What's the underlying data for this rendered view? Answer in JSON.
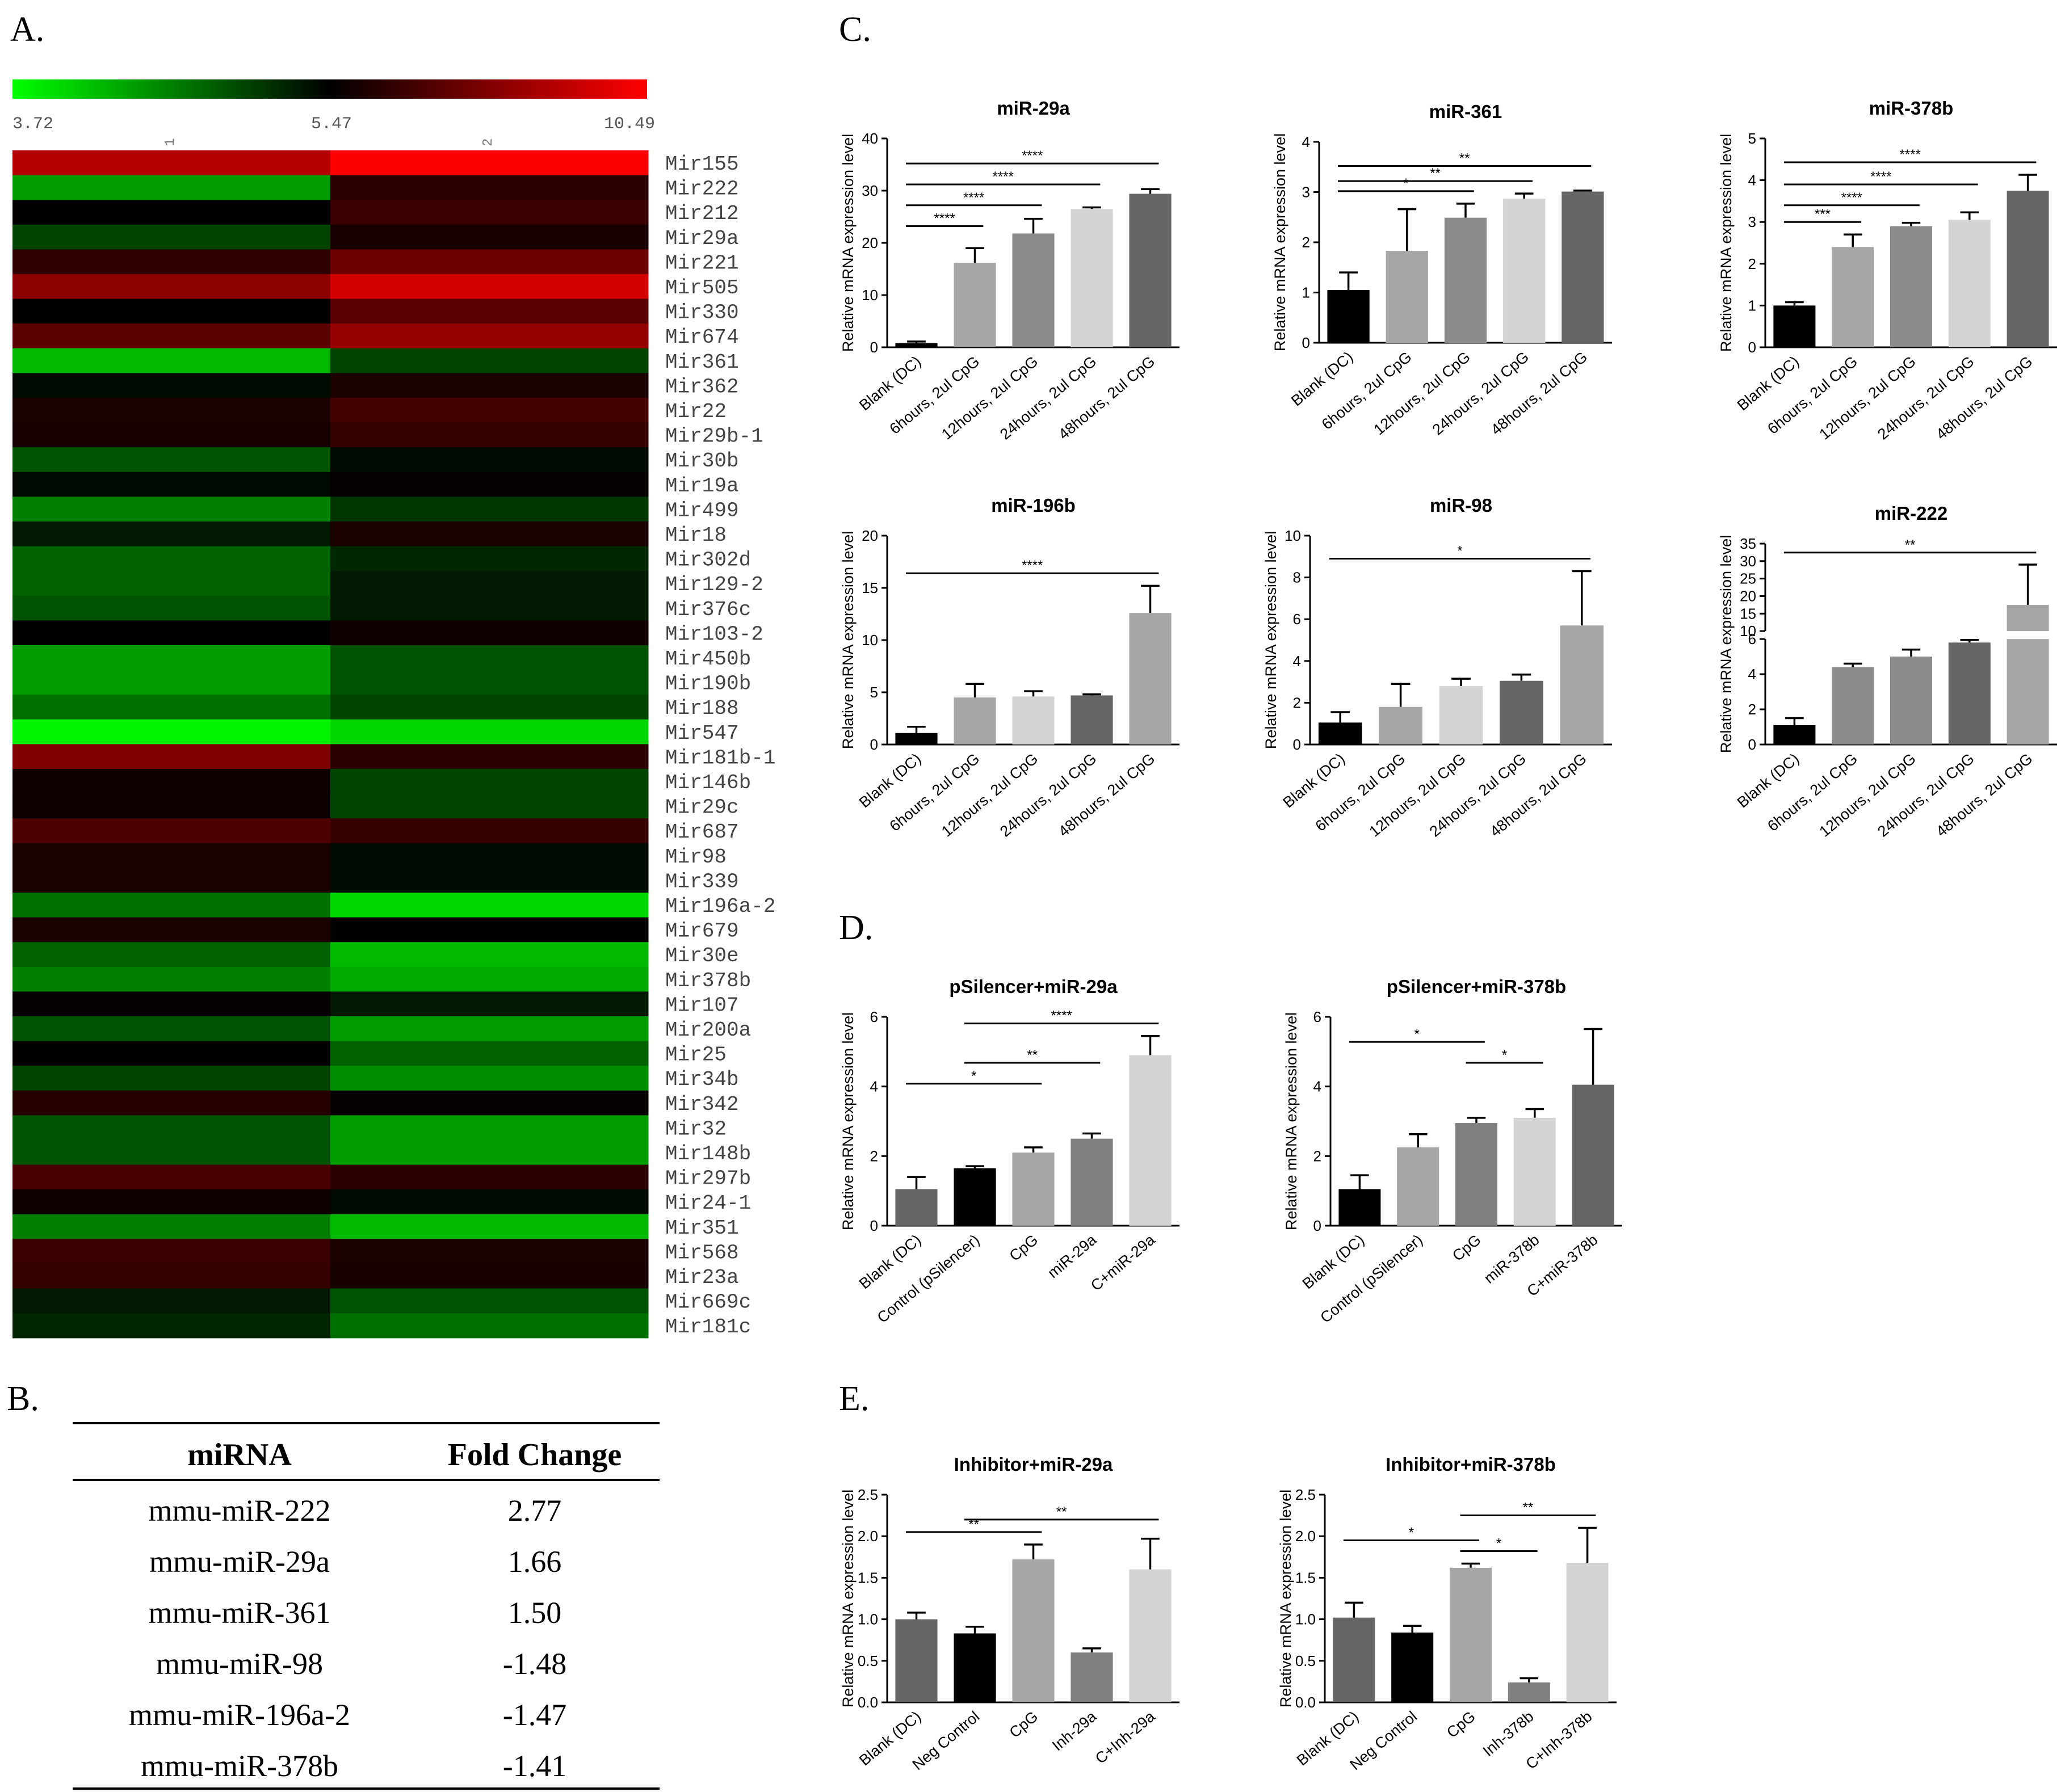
{
  "panel_labels": {
    "A": "A.",
    "B": "B.",
    "C": "C.",
    "D": "D.",
    "E": "E."
  },
  "heatmap": {
    "colorbar": {
      "min": "3.72",
      "mid": "5.47",
      "max": "10.49",
      "colors": [
        "#00ff00",
        "#000000",
        "#ff0000"
      ]
    },
    "column_labels": [
      "1",
      "2"
    ],
    "rows": [
      {
        "name": "Mir155",
        "values": [
          9.0,
          10.4
        ]
      },
      {
        "name": "Mir222",
        "values": [
          4.4,
          6.3
        ]
      },
      {
        "name": "Mir212",
        "values": [
          5.5,
          6.6
        ]
      },
      {
        "name": "Mir29a",
        "values": [
          5.0,
          5.9
        ]
      },
      {
        "name": "Mir221",
        "values": [
          6.4,
          7.6
        ]
      },
      {
        "name": "Mir505",
        "values": [
          8.2,
          9.6
        ]
      },
      {
        "name": "Mir330",
        "values": [
          5.5,
          7.2
        ]
      },
      {
        "name": "Mir674",
        "values": [
          7.3,
          8.4
        ]
      },
      {
        "name": "Mir361",
        "values": [
          4.2,
          5.0
        ]
      },
      {
        "name": "Mir362",
        "values": [
          5.4,
          6.0
        ]
      },
      {
        "name": "Mir22",
        "values": [
          6.0,
          6.8
        ]
      },
      {
        "name": "Mir29b-1",
        "values": [
          5.9,
          6.5
        ]
      },
      {
        "name": "Mir30b",
        "values": [
          4.9,
          5.4
        ]
      },
      {
        "name": "Mir19a",
        "values": [
          5.4,
          5.6
        ]
      },
      {
        "name": "Mir499",
        "values": [
          4.6,
          5.1
        ]
      },
      {
        "name": "Mir18",
        "values": [
          5.3,
          6.0
        ]
      },
      {
        "name": "Mir302d",
        "values": [
          4.8,
          5.2
        ]
      },
      {
        "name": "Mir129-2",
        "values": [
          4.8,
          5.3
        ]
      },
      {
        "name": "Mir376c",
        "values": [
          4.9,
          5.3
        ]
      },
      {
        "name": "Mir103-2",
        "values": [
          5.5,
          5.8
        ]
      },
      {
        "name": "Mir450b",
        "values": [
          4.4,
          4.9
        ]
      },
      {
        "name": "Mir190b",
        "values": [
          4.4,
          4.9
        ]
      },
      {
        "name": "Mir188",
        "values": [
          4.7,
          5.0
        ]
      },
      {
        "name": "Mir547",
        "values": [
          3.8,
          4.0
        ]
      },
      {
        "name": "Mir181b-1",
        "values": [
          8.0,
          6.3
        ]
      },
      {
        "name": "Mir146b",
        "values": [
          5.8,
          5.0
        ]
      },
      {
        "name": "Mir29c",
        "values": [
          5.7,
          5.0
        ]
      },
      {
        "name": "Mir687",
        "values": [
          7.0,
          6.5
        ]
      },
      {
        "name": "Mir98",
        "values": [
          6.0,
          5.4
        ]
      },
      {
        "name": "Mir339",
        "values": [
          6.0,
          5.4
        ]
      },
      {
        "name": "Mir196a-2",
        "values": [
          4.7,
          4.0
        ]
      },
      {
        "name": "Mir679",
        "values": [
          6.0,
          5.5
        ]
      },
      {
        "name": "Mir30e",
        "values": [
          4.8,
          4.2
        ]
      },
      {
        "name": "Mir378b",
        "values": [
          4.6,
          4.3
        ]
      },
      {
        "name": "Mir107",
        "values": [
          5.6,
          5.3
        ]
      },
      {
        "name": "Mir200a",
        "values": [
          4.9,
          4.4
        ]
      },
      {
        "name": "Mir25",
        "values": [
          5.5,
          4.8
        ]
      },
      {
        "name": "Mir34b",
        "values": [
          5.0,
          4.5
        ]
      },
      {
        "name": "Mir342",
        "values": [
          6.2,
          5.6
        ]
      },
      {
        "name": "Mir32",
        "values": [
          4.9,
          4.4
        ]
      },
      {
        "name": "Mir148b",
        "values": [
          4.9,
          4.4
        ]
      },
      {
        "name": "Mir297b",
        "values": [
          6.9,
          6.3
        ]
      },
      {
        "name": "Mir24-1",
        "values": [
          5.7,
          5.4
        ]
      },
      {
        "name": "Mir351",
        "values": [
          4.6,
          4.2
        ]
      },
      {
        "name": "Mir568",
        "values": [
          6.6,
          6.0
        ]
      },
      {
        "name": "Mir23a",
        "values": [
          6.5,
          5.9
        ]
      },
      {
        "name": "Mir669c",
        "values": [
          5.3,
          4.9
        ]
      },
      {
        "name": "Mir181c",
        "values": [
          5.2,
          4.7
        ]
      }
    ]
  },
  "table": {
    "headers": [
      "miRNA",
      "Fold Change"
    ],
    "rows": [
      [
        "mmu-miR-222",
        "2.77"
      ],
      [
        "mmu-miR-29a",
        "1.66"
      ],
      [
        "mmu-miR-361",
        "1.50"
      ],
      [
        "mmu-miR-98",
        "-1.48"
      ],
      [
        "mmu-miR-196a-2",
        "-1.47"
      ],
      [
        "mmu-miR-378b",
        "-1.41"
      ]
    ]
  },
  "chart_data": [
    {
      "type": "bar",
      "panel": "C",
      "title": "miR-29a",
      "ylabel": "Relative mRNA expression level",
      "categories": [
        "Blank (DC)",
        "6hours, 2ul CpG",
        "12hours, 2ul CpG",
        "24hours, 2ul CpG",
        "48hours, 2ul CpG"
      ],
      "values": [
        0.8,
        16.2,
        21.8,
        26.5,
        29.4
      ],
      "errors": [
        0.3,
        2.8,
        2.8,
        0.3,
        0.9
      ],
      "colors": [
        "#000000",
        "#a6a6a6",
        "#8c8c8c",
        "#d4d4d4",
        "#666666"
      ],
      "ylim": [
        0,
        40
      ],
      "yticks": [
        "0",
        "10",
        "20",
        "30",
        "40"
      ],
      "significance": [
        {
          "from": 0,
          "to": 4,
          "label": "****"
        },
        {
          "from": 0,
          "to": 3,
          "label": "****"
        },
        {
          "from": 0,
          "to": 2,
          "label": "****"
        },
        {
          "from": 0,
          "to": 1,
          "label": "****"
        }
      ]
    },
    {
      "type": "bar",
      "panel": "C",
      "title": "miR-361",
      "ylabel": "Relative mRNA expression level",
      "categories": [
        "Blank (DC)",
        "6hours, 2ul CpG",
        "12hours, 2ul CpG",
        "24hours, 2ul CpG",
        "48hours, 2ul CpG"
      ],
      "values": [
        1.05,
        1.83,
        2.49,
        2.87,
        3.01
      ],
      "errors": [
        0.35,
        0.83,
        0.28,
        0.1,
        0.02
      ],
      "colors": [
        "#000000",
        "#a6a6a6",
        "#8c8c8c",
        "#d4d4d4",
        "#666666"
      ],
      "ylim": [
        0,
        4
      ],
      "yticks": [
        "0",
        "1",
        "2",
        "3",
        "4"
      ],
      "significance": [
        {
          "from": 0,
          "to": 4,
          "label": "**"
        },
        {
          "from": 0,
          "to": 3,
          "label": "**"
        },
        {
          "from": 0,
          "to": 2,
          "label": "*"
        }
      ]
    },
    {
      "type": "bar",
      "panel": "C",
      "title": "miR-378b",
      "ylabel": "Relative mRNA expression level",
      "categories": [
        "Blank (DC)",
        "6hours, 2ul CpG",
        "12hours, 2ul CpG",
        "24hours, 2ul CpG",
        "48hours, 2ul CpG"
      ],
      "values": [
        1.0,
        2.4,
        2.9,
        3.05,
        3.75
      ],
      "errors": [
        0.08,
        0.3,
        0.08,
        0.18,
        0.38
      ],
      "colors": [
        "#000000",
        "#a6a6a6",
        "#8c8c8c",
        "#d4d4d4",
        "#666666"
      ],
      "ylim": [
        0,
        5
      ],
      "yticks": [
        "0",
        "1",
        "2",
        "3",
        "4",
        "5"
      ],
      "significance": [
        {
          "from": 0,
          "to": 4,
          "label": "****"
        },
        {
          "from": 0,
          "to": 3,
          "label": "****"
        },
        {
          "from": 0,
          "to": 2,
          "label": "****"
        },
        {
          "from": 0,
          "to": 1,
          "label": "***"
        }
      ]
    },
    {
      "type": "bar",
      "panel": "C",
      "title": "miR-196b",
      "ylabel": "Relative mRNA expression level",
      "categories": [
        "Blank (DC)",
        "6hours, 2ul CpG",
        "12hours, 2ul CpG",
        "24hours, 2ul CpG",
        "48hours, 2ul CpG"
      ],
      "values": [
        1.1,
        4.5,
        4.6,
        4.7,
        12.6
      ],
      "errors": [
        0.6,
        1.3,
        0.5,
        0.1,
        2.6
      ],
      "colors": [
        "#000000",
        "#a6a6a6",
        "#d4d4d4",
        "#666666",
        "#a6a6a6"
      ],
      "ylim": [
        0,
        20
      ],
      "yticks": [
        "0",
        "5",
        "10",
        "15",
        "20"
      ],
      "significance": [
        {
          "from": 0,
          "to": 4,
          "label": "****"
        }
      ]
    },
    {
      "type": "bar",
      "panel": "C",
      "title": "miR-98",
      "ylabel": "Relative mRNA expression level",
      "categories": [
        "Blank (DC)",
        "6hours, 2ul CpG",
        "12hours, 2ul CpG",
        "24hours, 2ul CpG",
        "48hours, 2ul CpG"
      ],
      "values": [
        1.05,
        1.8,
        2.8,
        3.05,
        5.7
      ],
      "errors": [
        0.5,
        1.1,
        0.35,
        0.3,
        2.6
      ],
      "colors": [
        "#000000",
        "#a6a6a6",
        "#d4d4d4",
        "#666666",
        "#a6a6a6"
      ],
      "ylim": [
        0,
        10
      ],
      "yticks": [
        "0",
        "2",
        "4",
        "6",
        "8",
        "10"
      ],
      "significance": [
        {
          "from": 0,
          "to": 4,
          "label": "*"
        }
      ]
    },
    {
      "type": "bar",
      "panel": "C",
      "title": "miR-222",
      "ylabel": "Relative mRNA expression level",
      "categories": [
        "Blank (DC)",
        "6hours, 2ul CpG",
        "12hours, 2ul CpG",
        "24hours, 2ul CpG",
        "48hours, 2ul CpG"
      ],
      "values": [
        1.1,
        4.4,
        5.0,
        5.8,
        17.5
      ],
      "errors": [
        0.4,
        0.2,
        0.4,
        0.15,
        11.5
      ],
      "colors": [
        "#000000",
        "#8c8c8c",
        "#8c8c8c",
        "#666666",
        "#a6a6a6"
      ],
      "ylim": [
        0,
        35
      ],
      "axis_break": [
        6,
        10
      ],
      "yticks_lower": [
        "0",
        "2",
        "4",
        "6"
      ],
      "yticks_upper": [
        "10",
        "15",
        "20",
        "25",
        "30",
        "35"
      ],
      "significance": [
        {
          "from": 0,
          "to": 4,
          "label": "**"
        }
      ]
    },
    {
      "type": "bar",
      "panel": "D",
      "title": "pSilencer+miR-29a",
      "ylabel": "Relative mRNA expression level",
      "categories": [
        "Blank (DC)",
        "Control (pSilencer)",
        "CpG",
        "miR-29a",
        "C+miR-29a"
      ],
      "values": [
        1.05,
        1.65,
        2.1,
        2.5,
        4.9
      ],
      "errors": [
        0.35,
        0.06,
        0.15,
        0.15,
        0.55
      ],
      "colors": [
        "#666666",
        "#000000",
        "#a6a6a6",
        "#808080",
        "#d4d4d4"
      ],
      "ylim": [
        0,
        6
      ],
      "yticks": [
        "0",
        "2",
        "4",
        "6"
      ],
      "significance": [
        {
          "from": 0,
          "to": 2,
          "label": "*"
        },
        {
          "from": 1,
          "to": 3,
          "label": "**"
        },
        {
          "from": 1,
          "to": 4,
          "label": "****"
        }
      ]
    },
    {
      "type": "bar",
      "panel": "D",
      "title": "pSilencer+miR-378b",
      "ylabel": "Relative mRNA expression level",
      "categories": [
        "Blank (DC)",
        "Control (pSilencer)",
        "CpG",
        "miR-378b",
        "C+miR-378b"
      ],
      "values": [
        1.05,
        2.25,
        2.95,
        3.1,
        4.05
      ],
      "errors": [
        0.4,
        0.38,
        0.15,
        0.25,
        1.6
      ],
      "colors": [
        "#000000",
        "#a6a6a6",
        "#808080",
        "#d4d4d4",
        "#666666"
      ],
      "ylim": [
        0,
        6
      ],
      "yticks": [
        "0",
        "2",
        "4",
        "6"
      ],
      "significance": [
        {
          "from": 0,
          "to": 2,
          "label": "*"
        },
        {
          "from": 2,
          "to": 3,
          "label": "*"
        }
      ]
    },
    {
      "type": "bar",
      "panel": "E",
      "title": "Inhibitor+miR-29a",
      "ylabel": "Relative mRNA expression level",
      "categories": [
        "Blank (DC)",
        "Neg Control",
        "CpG",
        "Inh-29a",
        "C+Inh-29a"
      ],
      "values": [
        1.0,
        0.83,
        1.72,
        0.6,
        1.6
      ],
      "errors": [
        0.08,
        0.08,
        0.18,
        0.05,
        0.37
      ],
      "colors": [
        "#666666",
        "#000000",
        "#a6a6a6",
        "#808080",
        "#d4d4d4"
      ],
      "ylim": [
        0,
        2.5
      ],
      "yticks": [
        "0.0",
        "0.5",
        "1.0",
        "1.5",
        "2.0",
        "2.5"
      ],
      "significance": [
        {
          "from": 0,
          "to": 2,
          "label": "**"
        },
        {
          "from": 1,
          "to": 4,
          "label": "**"
        }
      ]
    },
    {
      "type": "bar",
      "panel": "E",
      "title": "Inhibitor+miR-378b",
      "ylabel": "Relative mRNA expression level",
      "categories": [
        "Blank (DC)",
        "Neg Control",
        "CpG",
        "Inh-378b",
        "C+Inh-378b"
      ],
      "values": [
        1.02,
        0.84,
        1.62,
        0.24,
        1.68
      ],
      "errors": [
        0.18,
        0.08,
        0.05,
        0.05,
        0.42
      ],
      "colors": [
        "#666666",
        "#000000",
        "#a6a6a6",
        "#808080",
        "#d4d4d4"
      ],
      "ylim": [
        0,
        2.5
      ],
      "yticks": [
        "0.0",
        "0.5",
        "1.0",
        "1.5",
        "2.0",
        "2.5"
      ],
      "significance": [
        {
          "from": 0,
          "to": 2,
          "label": "*"
        },
        {
          "from": 2,
          "to": 3,
          "label": "*"
        },
        {
          "from": 2,
          "to": 4,
          "label": "**"
        }
      ]
    }
  ]
}
